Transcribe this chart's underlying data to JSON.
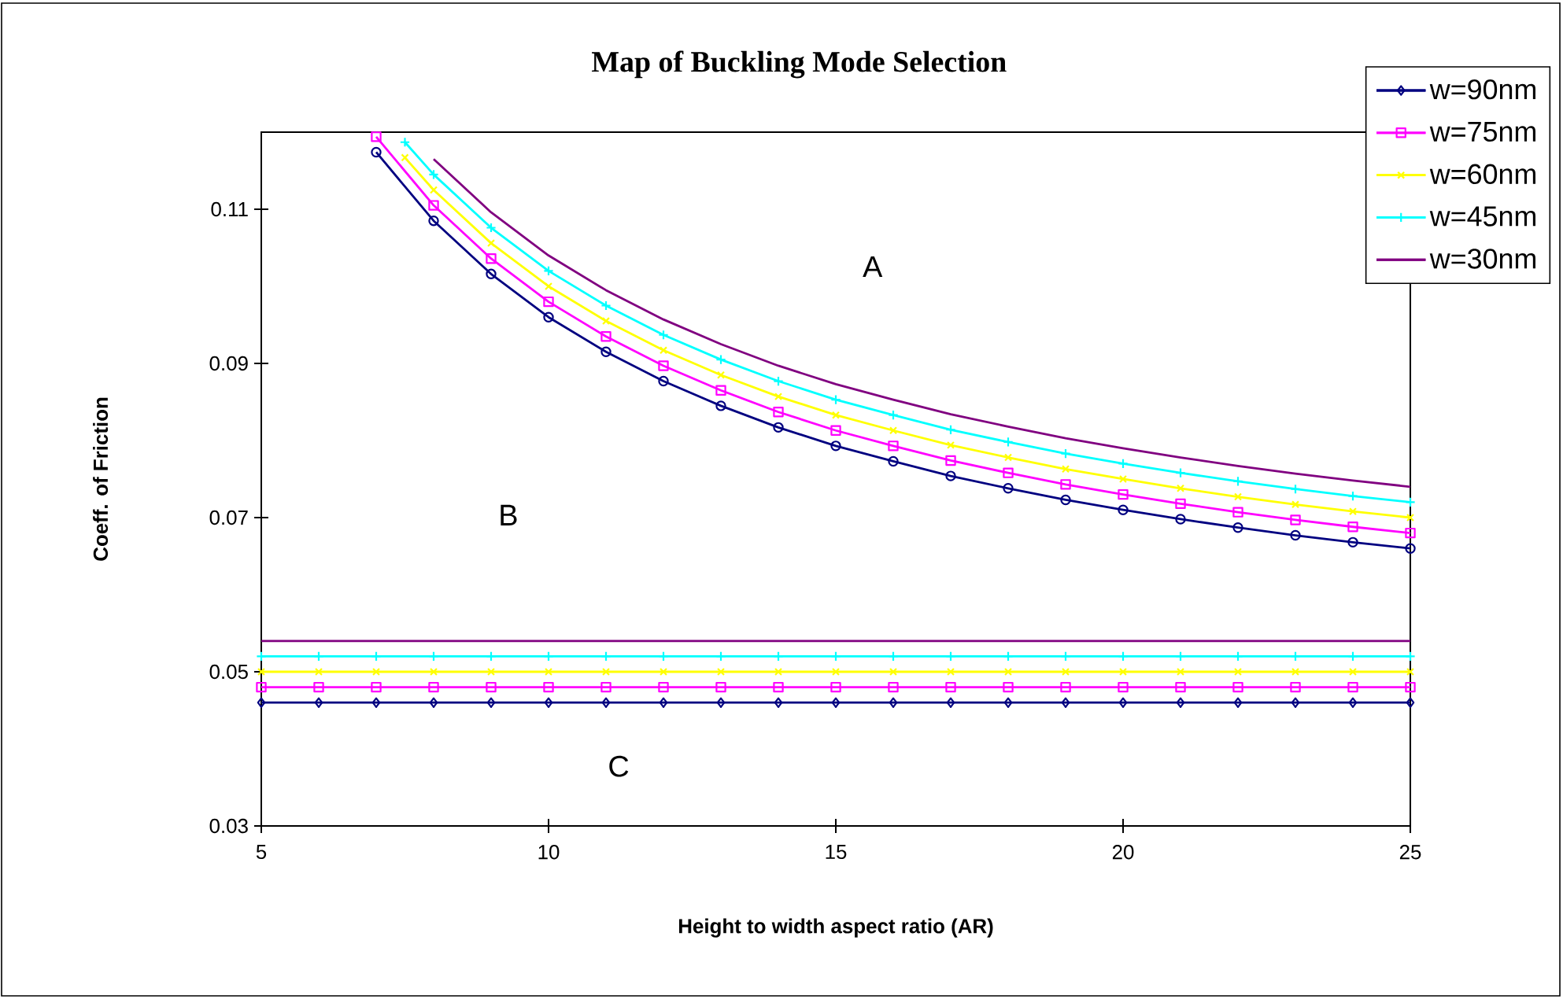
{
  "chart_data": {
    "type": "line",
    "title": "Map of Buckling Mode Selection",
    "xlabel": "Height to width aspect ratio (AR)",
    "ylabel": "Coeff. of Friction",
    "xlim": [
      5,
      25
    ],
    "ylim": [
      0.03,
      0.12
    ],
    "xticks": [
      5,
      10,
      15,
      20,
      25
    ],
    "yticks": [
      0.03,
      0.05,
      0.07,
      0.09,
      0.11
    ],
    "grid": false,
    "legend": "top right",
    "series": [
      {
        "color": "#000080",
        "marker": "circle",
        "x": [
          7,
          8,
          9,
          10,
          11,
          12,
          13,
          14,
          15,
          16,
          17,
          18,
          19,
          20,
          21,
          22,
          23,
          24,
          25
        ],
        "values": [
          0.1174,
          0.1085,
          0.1016,
          0.096,
          0.0915,
          0.0877,
          0.0845,
          0.0817,
          0.0793,
          0.0773,
          0.0754,
          0.0738,
          0.0723,
          0.071,
          0.0698,
          0.0687,
          0.0677,
          0.0668,
          0.066
        ]
      },
      {
        "color": "#ff00ff",
        "marker": "square",
        "x": [
          7,
          8,
          9,
          10,
          11,
          12,
          13,
          14,
          15,
          16,
          17,
          18,
          19,
          20,
          21,
          22,
          23,
          24,
          25
        ],
        "values": [
          0.1194,
          0.1105,
          0.1036,
          0.098,
          0.0935,
          0.0897,
          0.0865,
          0.0837,
          0.0813,
          0.0793,
          0.0774,
          0.0758,
          0.0743,
          0.073,
          0.0718,
          0.0707,
          0.0697,
          0.0688,
          0.068
        ]
      },
      {
        "color": "#ffff00",
        "marker": "cross",
        "x": [
          7.5,
          8,
          9,
          10,
          11,
          12,
          13,
          14,
          15,
          16,
          17,
          18,
          19,
          20,
          21,
          22,
          23,
          24,
          25
        ],
        "values": [
          0.1167,
          0.1125,
          0.1056,
          0.1,
          0.0955,
          0.0917,
          0.0885,
          0.0857,
          0.0833,
          0.0813,
          0.0794,
          0.0778,
          0.0763,
          0.075,
          0.0738,
          0.0727,
          0.0717,
          0.0708,
          0.07
        ]
      },
      {
        "color": "#00ffff",
        "marker": "plus",
        "x": [
          7.5,
          8,
          9,
          10,
          11,
          12,
          13,
          14,
          15,
          16,
          17,
          18,
          19,
          20,
          21,
          22,
          23,
          24,
          25
        ],
        "values": [
          0.1187,
          0.1145,
          0.1076,
          0.102,
          0.0975,
          0.0937,
          0.0905,
          0.0877,
          0.0853,
          0.0833,
          0.0814,
          0.0798,
          0.0783,
          0.077,
          0.0758,
          0.0747,
          0.0737,
          0.0728,
          0.072
        ]
      },
      {
        "color": "#800080",
        "marker": "none",
        "x": [
          8,
          9,
          10,
          11,
          12,
          13,
          14,
          15,
          16,
          17,
          18,
          19,
          20,
          21,
          22,
          23,
          24,
          25
        ],
        "values": [
          0.1165,
          0.1096,
          0.104,
          0.0995,
          0.0957,
          0.0925,
          0.0897,
          0.0873,
          0.0853,
          0.0834,
          0.0818,
          0.0803,
          0.079,
          0.0778,
          0.0767,
          0.0757,
          0.0748,
          0.074
        ]
      },
      {
        "name": "w=90nm",
        "color": "#000080",
        "marker": "diamond",
        "x": [
          5,
          6,
          7,
          8,
          9,
          10,
          11,
          12,
          13,
          14,
          15,
          16,
          17,
          18,
          19,
          20,
          21,
          22,
          23,
          24,
          25
        ],
        "values": [
          0.046,
          0.046,
          0.046,
          0.046,
          0.046,
          0.046,
          0.046,
          0.046,
          0.046,
          0.046,
          0.046,
          0.046,
          0.046,
          0.046,
          0.046,
          0.046,
          0.046,
          0.046,
          0.046,
          0.046,
          0.046
        ]
      },
      {
        "name": "w=75nm",
        "color": "#ff00ff",
        "marker": "square",
        "x": [
          5,
          6,
          7,
          8,
          9,
          10,
          11,
          12,
          13,
          14,
          15,
          16,
          17,
          18,
          19,
          20,
          21,
          22,
          23,
          24,
          25
        ],
        "values": [
          0.048,
          0.048,
          0.048,
          0.048,
          0.048,
          0.048,
          0.048,
          0.048,
          0.048,
          0.048,
          0.048,
          0.048,
          0.048,
          0.048,
          0.048,
          0.048,
          0.048,
          0.048,
          0.048,
          0.048,
          0.048
        ]
      },
      {
        "name": "w=60nm",
        "color": "#ffff00",
        "marker": "cross",
        "x": [
          5,
          6,
          7,
          8,
          9,
          10,
          11,
          12,
          13,
          14,
          15,
          16,
          17,
          18,
          19,
          20,
          21,
          22,
          23,
          24,
          25
        ],
        "values": [
          0.05,
          0.05,
          0.05,
          0.05,
          0.05,
          0.05,
          0.05,
          0.05,
          0.05,
          0.05,
          0.05,
          0.05,
          0.05,
          0.05,
          0.05,
          0.05,
          0.05,
          0.05,
          0.05,
          0.05,
          0.05
        ]
      },
      {
        "name": "w=45nm",
        "color": "#00ffff",
        "marker": "plus",
        "x": [
          5,
          6,
          7,
          8,
          9,
          10,
          11,
          12,
          13,
          14,
          15,
          16,
          17,
          18,
          19,
          20,
          21,
          22,
          23,
          24,
          25
        ],
        "values": [
          0.052,
          0.052,
          0.052,
          0.052,
          0.052,
          0.052,
          0.052,
          0.052,
          0.052,
          0.052,
          0.052,
          0.052,
          0.052,
          0.052,
          0.052,
          0.052,
          0.052,
          0.052,
          0.052,
          0.052,
          0.052
        ]
      },
      {
        "name": "w=30nm",
        "color": "#800080",
        "marker": "none",
        "x": [
          5,
          6,
          7,
          8,
          9,
          10,
          11,
          12,
          13,
          14,
          15,
          16,
          17,
          18,
          19,
          20,
          21,
          22,
          23,
          24,
          25
        ],
        "values": [
          0.054,
          0.054,
          0.054,
          0.054,
          0.054,
          0.054,
          0.054,
          0.054,
          0.054,
          0.054,
          0.054,
          0.054,
          0.054,
          0.054,
          0.054,
          0.054,
          0.054,
          0.054,
          0.054,
          0.054,
          0.054
        ]
      }
    ],
    "annotations": [
      "A",
      "B",
      "C"
    ]
  }
}
